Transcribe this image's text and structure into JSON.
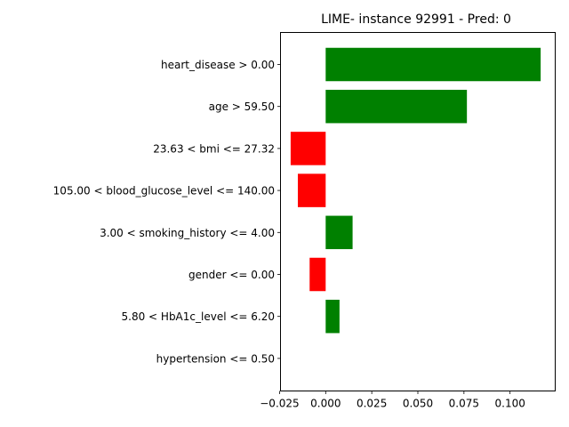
{
  "chart_data": {
    "type": "bar",
    "orientation": "horizontal",
    "title": "LIME- instance 92991 - Pred: 0",
    "xlabel": "",
    "ylabel": "",
    "xlim": [
      -0.0245,
      0.1245
    ],
    "xticks": [
      -0.025,
      0.0,
      0.025,
      0.05,
      0.075,
      0.1
    ],
    "xtick_labels": [
      "−0.025",
      "0.000",
      "0.025",
      "0.050",
      "0.075",
      "0.100"
    ],
    "grid": false,
    "legend": null,
    "positive_color": "#008000",
    "negative_color": "#ff0000",
    "categories": [
      "heart_disease > 0.00",
      "age > 59.50",
      "23.63 < bmi <= 27.32",
      "105.00 < blood_glucose_level <= 140.00",
      "3.00 < smoking_history <= 4.00",
      "gender <= 0.00",
      "5.80 < HbA1c_level <= 6.20",
      "hypertension <= 0.50"
    ],
    "values": [
      0.1166,
      0.0766,
      -0.019,
      -0.0151,
      0.0146,
      -0.0087,
      0.0075,
      0.0
    ]
  }
}
